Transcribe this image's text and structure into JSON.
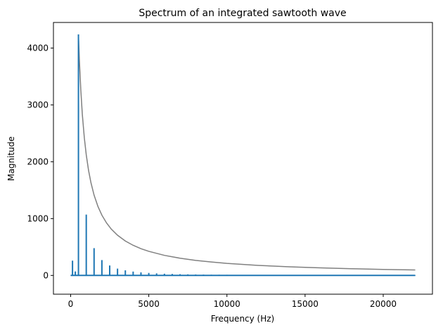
{
  "chart_data": {
    "type": "line",
    "title": "Spectrum of an integrated sawtooth wave",
    "xlabel": "Frequency (Hz)",
    "ylabel": "Magnitude",
    "xlim": [
      -1100,
      23150
    ],
    "ylim": [
      -330,
      4450
    ],
    "xticks": [
      0,
      5000,
      10000,
      15000,
      20000
    ],
    "yticks": [
      0,
      1000,
      2000,
      3000,
      4000
    ],
    "grid": false,
    "legend": "none",
    "fundamental_hz": 500,
    "max_frequency_hz": 22050,
    "series": [
      {
        "color": "#808080",
        "style": "smooth envelope",
        "x": [
          500,
          560,
          650,
          750,
          875,
          1000,
          1150,
          1300,
          1500,
          1750,
          2000,
          2300,
          2600,
          3000,
          3500,
          4000,
          4500,
          5000,
          6000,
          7000,
          8000,
          9000,
          10000,
          12000,
          14000,
          16000,
          18000,
          20000,
          22050
        ],
        "y": [
          4240,
          3786,
          3262,
          2827,
          2423,
          2120,
          1843,
          1631,
          1413,
          1211,
          1060,
          922,
          815,
          707,
          606,
          530,
          471,
          424,
          353,
          303,
          265,
          236,
          212,
          177,
          151,
          133,
          118,
          106,
          96
        ]
      },
      {
        "color": "#1f77b4",
        "style": "harmonic peaks",
        "peaks": [
          {
            "x": 120,
            "y": 260
          },
          {
            "x": 300,
            "y": 70
          },
          {
            "x": 500,
            "y": 4240
          },
          {
            "x": 1000,
            "y": 1070
          },
          {
            "x": 1500,
            "y": 480
          },
          {
            "x": 2000,
            "y": 270
          },
          {
            "x": 2500,
            "y": 175
          },
          {
            "x": 3000,
            "y": 120
          },
          {
            "x": 3500,
            "y": 90
          },
          {
            "x": 4000,
            "y": 68
          },
          {
            "x": 4500,
            "y": 54
          },
          {
            "x": 5000,
            "y": 44
          },
          {
            "x": 5500,
            "y": 36
          },
          {
            "x": 6000,
            "y": 30
          },
          {
            "x": 6500,
            "y": 26
          },
          {
            "x": 7000,
            "y": 22
          },
          {
            "x": 7500,
            "y": 19
          },
          {
            "x": 8000,
            "y": 17
          },
          {
            "x": 8500,
            "y": 15
          },
          {
            "x": 9000,
            "y": 13
          },
          {
            "x": 9500,
            "y": 12
          },
          {
            "x": 10000,
            "y": 11
          },
          {
            "x": 11000,
            "y": 9
          },
          {
            "x": 12000,
            "y": 8
          },
          {
            "x": 13000,
            "y": 7
          },
          {
            "x": 14000,
            "y": 6
          },
          {
            "x": 16000,
            "y": 5
          },
          {
            "x": 18000,
            "y": 4
          },
          {
            "x": 20000,
            "y": 4
          },
          {
            "x": 22050,
            "y": 3
          }
        ]
      }
    ]
  }
}
